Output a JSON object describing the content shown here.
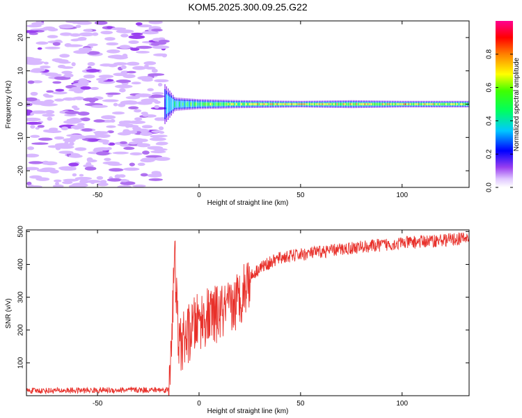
{
  "title": "KOM5.2025.300.09.25.G22",
  "chart_data": [
    {
      "type": "heatmap",
      "xlabel": "Height of straight line (km)",
      "ylabel": "Frequency (Hz)",
      "xlim": [
        -85,
        133
      ],
      "ylim": [
        -25,
        25
      ],
      "xticks": [
        -50,
        0,
        50,
        100
      ],
      "yticks": [
        -20,
        -10,
        0,
        10,
        20
      ],
      "colorbar": {
        "label": "Normalized spectral amplitude",
        "range": [
          0,
          1
        ],
        "ticks": [
          "0.0",
          "0.2",
          "0.4",
          "0.6",
          "0.8"
        ],
        "tick_values": [
          0,
          0.2,
          0.4,
          0.6,
          0.8
        ],
        "colors": [
          "#ffffff",
          "#c8a0ff",
          "#8a2be2",
          "#0000ff",
          "#00ffff",
          "#00ff00",
          "#ffff00",
          "#ff8000",
          "#ff0000",
          "#ff0080"
        ]
      },
      "noise_region_x": [
        -85,
        -17
      ],
      "signal_band": [
        {
          "x": -17,
          "half_width_hz": 6,
          "amp": 0.35
        },
        {
          "x": -12,
          "half_width_hz": 2,
          "amp": 0.5
        },
        {
          "x": 0,
          "half_width_hz": 1.5,
          "amp": 0.6
        },
        {
          "x": 20,
          "half_width_hz": 1.2,
          "amp": 0.7
        },
        {
          "x": 50,
          "half_width_hz": 1.0,
          "amp": 0.85
        },
        {
          "x": 75,
          "half_width_hz": 1.2,
          "amp": 0.75
        },
        {
          "x": 100,
          "half_width_hz": 1.0,
          "amp": 0.85
        },
        {
          "x": 133,
          "half_width_hz": 1.0,
          "amp": 0.7
        }
      ]
    },
    {
      "type": "line",
      "xlabel": "Height of straight line (km)",
      "ylabel": "SNR (v/v)",
      "xlim": [
        -85,
        133
      ],
      "ylim": [
        0,
        505
      ],
      "xticks": [
        -50,
        0,
        50,
        100
      ],
      "yticks": [
        100,
        200,
        300,
        400,
        500
      ],
      "color": "#e8302a",
      "trend": [
        {
          "x": -85,
          "y": 15
        },
        {
          "x": -15,
          "y": 18
        },
        {
          "x": -13,
          "y": 260
        },
        {
          "x": -12,
          "y": 420
        },
        {
          "x": -10,
          "y": 150
        },
        {
          "x": 0,
          "y": 230
        },
        {
          "x": 10,
          "y": 250
        },
        {
          "x": 15,
          "y": 260
        },
        {
          "x": 20,
          "y": 300
        },
        {
          "x": 25,
          "y": 360
        },
        {
          "x": 30,
          "y": 390
        },
        {
          "x": 40,
          "y": 420
        },
        {
          "x": 50,
          "y": 430
        },
        {
          "x": 75,
          "y": 450
        },
        {
          "x": 100,
          "y": 465
        },
        {
          "x": 133,
          "y": 480
        }
      ]
    }
  ]
}
